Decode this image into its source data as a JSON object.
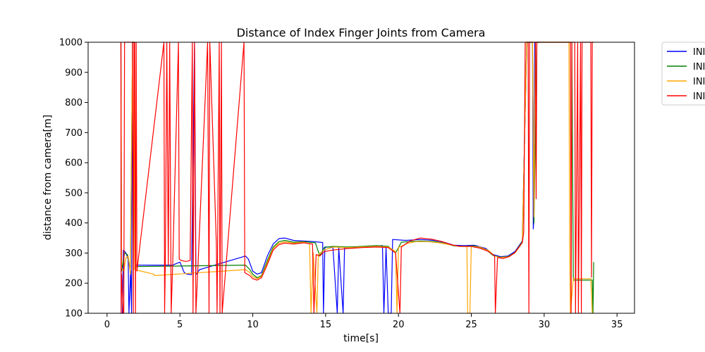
{
  "chart_data": {
    "type": "line",
    "title": "Distance of Index Finger Joints from Camera",
    "xlabel": "time[s]",
    "ylabel": "distance from camera[m]",
    "xlim": [
      -1.3,
      36.2
    ],
    "ylim": [
      100,
      1000
    ],
    "xticks": [
      0,
      5,
      10,
      15,
      20,
      25,
      30,
      35
    ],
    "yticks": [
      100,
      200,
      300,
      400,
      500,
      600,
      700,
      800,
      900,
      1000
    ],
    "grid": false,
    "legend_position": "outside-top-right",
    "series": [
      {
        "name": "INI",
        "color": "#0000ff",
        "points": [
          [
            0.95,
            1000
          ],
          [
            0.97,
            100
          ],
          [
            1.05,
            100
          ],
          [
            1.12,
            310
          ],
          [
            1.3,
            300
          ],
          [
            1.45,
            280
          ],
          [
            1.5,
            100
          ],
          [
            1.62,
            240
          ],
          [
            1.68,
            100
          ],
          [
            1.75,
            1000
          ],
          [
            1.85,
            1000
          ],
          [
            1.9,
            260
          ],
          [
            4.5,
            260
          ],
          [
            5.0,
            270
          ],
          [
            5.3,
            235
          ],
          [
            5.5,
            230
          ],
          [
            5.8,
            228
          ],
          [
            6.0,
            1000
          ],
          [
            6.1,
            228
          ],
          [
            6.35,
            245
          ],
          [
            9.5,
            290
          ],
          [
            9.7,
            280
          ],
          [
            10.0,
            240
          ],
          [
            10.3,
            230
          ],
          [
            10.6,
            235
          ],
          [
            11.0,
            290
          ],
          [
            11.4,
            330
          ],
          [
            11.8,
            348
          ],
          [
            12.2,
            350
          ],
          [
            12.8,
            342
          ],
          [
            13.5,
            340
          ],
          [
            14.2,
            338
          ],
          [
            14.8,
            335
          ],
          [
            14.85,
            100
          ],
          [
            14.95,
            320
          ],
          [
            15.5,
            320
          ],
          [
            15.8,
            100
          ],
          [
            15.9,
            318
          ],
          [
            16.2,
            100
          ],
          [
            16.3,
            318
          ],
          [
            17.0,
            318
          ],
          [
            18.0,
            322
          ],
          [
            18.9,
            325
          ],
          [
            19.0,
            100
          ],
          [
            19.15,
            318
          ],
          [
            19.3,
            100
          ],
          [
            19.5,
            100
          ],
          [
            19.6,
            345
          ],
          [
            20.5,
            342
          ],
          [
            21.5,
            345
          ],
          [
            22.5,
            342
          ],
          [
            23.2,
            335
          ],
          [
            23.8,
            326
          ],
          [
            24.5,
            325
          ],
          [
            25.2,
            326
          ],
          [
            26.0,
            315
          ],
          [
            26.5,
            295
          ],
          [
            27.0,
            288
          ],
          [
            27.5,
            290
          ],
          [
            28.0,
            305
          ],
          [
            28.5,
            340
          ],
          [
            28.8,
            1000
          ],
          [
            29.2,
            1000
          ],
          [
            29.25,
            380
          ],
          [
            29.3,
            420
          ],
          [
            29.35,
            1000
          ],
          [
            29.7,
            1000
          ]
        ]
      },
      {
        "name": "INI",
        "color": "#008000",
        "points": [
          [
            0.95,
            1000
          ],
          [
            1.0,
            240
          ],
          [
            1.2,
            300
          ],
          [
            1.4,
            295
          ],
          [
            1.5,
            270
          ],
          [
            1.6,
            240
          ],
          [
            1.75,
            1000
          ],
          [
            1.85,
            1000
          ],
          [
            1.9,
            255
          ],
          [
            9.5,
            260
          ],
          [
            9.8,
            245
          ],
          [
            10.0,
            230
          ],
          [
            10.3,
            218
          ],
          [
            10.6,
            225
          ],
          [
            11.0,
            275
          ],
          [
            11.4,
            320
          ],
          [
            11.8,
            338
          ],
          [
            12.2,
            342
          ],
          [
            12.8,
            336
          ],
          [
            13.5,
            338
          ],
          [
            14.3,
            334
          ],
          [
            14.6,
            290
          ],
          [
            14.9,
            318
          ],
          [
            15.5,
            322
          ],
          [
            16.5,
            320
          ],
          [
            17.5,
            322
          ],
          [
            18.5,
            325
          ],
          [
            19.3,
            322
          ],
          [
            19.8,
            300
          ],
          [
            20.2,
            336
          ],
          [
            20.8,
            338
          ],
          [
            21.5,
            340
          ],
          [
            22.5,
            338
          ],
          [
            23.2,
            332
          ],
          [
            23.8,
            324
          ],
          [
            24.5,
            322
          ],
          [
            25.2,
            324
          ],
          [
            26.0,
            312
          ],
          [
            26.5,
            292
          ],
          [
            27.0,
            286
          ],
          [
            27.5,
            288
          ],
          [
            28.0,
            302
          ],
          [
            28.5,
            338
          ],
          [
            28.8,
            1000
          ],
          [
            29.2,
            1000
          ],
          [
            29.3,
            400
          ],
          [
            29.5,
            1000
          ],
          [
            29.7,
            1000
          ],
          [
            31.9,
            1000
          ],
          [
            32.0,
            210
          ],
          [
            33.3,
            210
          ],
          [
            33.35,
            100
          ],
          [
            33.4,
            270
          ]
        ]
      },
      {
        "name": "INI",
        "color": "#ffa500",
        "points": [
          [
            0.95,
            1000
          ],
          [
            1.0,
            250
          ],
          [
            1.15,
            240
          ],
          [
            1.3,
            285
          ],
          [
            1.45,
            290
          ],
          [
            1.6,
            230
          ],
          [
            1.75,
            1000
          ],
          [
            1.85,
            1000
          ],
          [
            1.9,
            245
          ],
          [
            3.2,
            230
          ],
          [
            3.25,
            225
          ],
          [
            9.5,
            245
          ],
          [
            9.8,
            235
          ],
          [
            10.0,
            222
          ],
          [
            10.3,
            215
          ],
          [
            10.6,
            222
          ],
          [
            11.0,
            268
          ],
          [
            11.4,
            315
          ],
          [
            11.8,
            333
          ],
          [
            12.2,
            337
          ],
          [
            12.8,
            333
          ],
          [
            13.5,
            336
          ],
          [
            13.9,
            330
          ],
          [
            14.0,
            100
          ],
          [
            14.15,
            300
          ],
          [
            14.4,
            100
          ],
          [
            14.5,
            295
          ],
          [
            14.9,
            310
          ],
          [
            15.5,
            320
          ],
          [
            16.5,
            318
          ],
          [
            17.5,
            320
          ],
          [
            18.5,
            322
          ],
          [
            19.3,
            320
          ],
          [
            19.8,
            305
          ],
          [
            19.9,
            100
          ],
          [
            20.0,
            318
          ],
          [
            20.6,
            332
          ],
          [
            21.2,
            338
          ],
          [
            22.0,
            338
          ],
          [
            22.8,
            334
          ],
          [
            23.5,
            328
          ],
          [
            24.2,
            322
          ],
          [
            24.7,
            322
          ],
          [
            24.75,
            100
          ],
          [
            24.9,
            100
          ],
          [
            25.0,
            322
          ],
          [
            25.6,
            320
          ],
          [
            26.2,
            308
          ],
          [
            26.6,
            290
          ],
          [
            27.0,
            285
          ],
          [
            27.5,
            287
          ],
          [
            28.0,
            300
          ],
          [
            28.5,
            335
          ],
          [
            28.8,
            1000
          ],
          [
            29.2,
            1000
          ],
          [
            29.3,
            420
          ],
          [
            29.4,
            1000
          ],
          [
            29.7,
            1000
          ],
          [
            31.7,
            1000
          ],
          [
            31.75,
            330
          ],
          [
            31.8,
            100
          ],
          [
            32.0,
            215
          ],
          [
            33.2,
            215
          ],
          [
            33.3,
            100
          ]
        ]
      },
      {
        "name": "INI",
        "color": "#ff0000",
        "points": [
          [
            0.95,
            1000
          ],
          [
            0.97,
            100
          ],
          [
            1.0,
            230
          ],
          [
            1.1,
            100
          ],
          [
            1.15,
            100
          ],
          [
            1.2,
            1000
          ],
          [
            1.75,
            1000
          ],
          [
            1.8,
            100
          ],
          [
            1.85,
            1000
          ],
          [
            1.9,
            1000
          ],
          [
            1.95,
            100
          ],
          [
            2.0,
            1000
          ],
          [
            2.05,
            240
          ],
          [
            3.9,
            1000
          ],
          [
            3.95,
            100
          ],
          [
            4.0,
            270
          ],
          [
            4.1,
            1000
          ],
          [
            4.2,
            260
          ],
          [
            4.3,
            1000
          ],
          [
            4.4,
            100
          ],
          [
            4.5,
            260
          ],
          [
            4.9,
            1000
          ],
          [
            4.95,
            280
          ],
          [
            5.1,
            275
          ],
          [
            5.4,
            272
          ],
          [
            5.7,
            275
          ],
          [
            5.85,
            1000
          ],
          [
            5.9,
            100
          ],
          [
            6.0,
            1000
          ],
          [
            6.1,
            100
          ],
          [
            6.9,
            1000
          ],
          [
            7.0,
            100
          ],
          [
            7.05,
            1000
          ],
          [
            7.5,
            330
          ],
          [
            7.55,
            100
          ],
          [
            7.7,
            1000
          ],
          [
            7.75,
            100
          ],
          [
            7.85,
            1000
          ],
          [
            7.9,
            100
          ],
          [
            9.4,
            1000
          ],
          [
            9.45,
            235
          ],
          [
            9.8,
            225
          ],
          [
            10.0,
            215
          ],
          [
            10.3,
            210
          ],
          [
            10.6,
            218
          ],
          [
            11.0,
            262
          ],
          [
            11.4,
            310
          ],
          [
            11.8,
            328
          ],
          [
            12.2,
            333
          ],
          [
            12.8,
            330
          ],
          [
            13.5,
            334
          ],
          [
            14.1,
            330
          ],
          [
            14.2,
            100
          ],
          [
            14.35,
            295
          ],
          [
            14.6,
            290
          ],
          [
            14.9,
            305
          ],
          [
            15.5,
            310
          ],
          [
            16.5,
            315
          ],
          [
            17.5,
            318
          ],
          [
            18.5,
            320
          ],
          [
            19.3,
            318
          ],
          [
            19.8,
            300
          ],
          [
            20.1,
            100
          ],
          [
            20.2,
            320
          ],
          [
            20.8,
            340
          ],
          [
            21.5,
            350
          ],
          [
            22.3,
            346
          ],
          [
            23.0,
            338
          ],
          [
            23.6,
            328
          ],
          [
            24.2,
            322
          ],
          [
            25.0,
            322
          ],
          [
            25.6,
            316
          ],
          [
            26.2,
            305
          ],
          [
            26.6,
            290
          ],
          [
            26.65,
            100
          ],
          [
            26.8,
            285
          ],
          [
            27.2,
            282
          ],
          [
            27.6,
            288
          ],
          [
            28.0,
            302
          ],
          [
            28.5,
            335
          ],
          [
            28.6,
            370
          ],
          [
            28.7,
            1000
          ],
          [
            28.9,
            1000
          ],
          [
            28.95,
            100
          ],
          [
            29.0,
            1000
          ],
          [
            29.4,
            1000
          ],
          [
            29.45,
            480
          ],
          [
            29.5,
            1000
          ],
          [
            29.7,
            1000
          ],
          [
            31.8,
            1000
          ],
          [
            31.85,
            100
          ],
          [
            31.9,
            1000
          ],
          [
            32.1,
            1000
          ],
          [
            32.15,
            100
          ],
          [
            32.3,
            1000
          ],
          [
            32.35,
            100
          ],
          [
            32.5,
            1000
          ],
          [
            32.55,
            100
          ],
          [
            32.6,
            1000
          ],
          [
            33.2,
            1000
          ],
          [
            33.25,
            220
          ],
          [
            33.3,
            1000
          ],
          [
            33.4,
            1000
          ]
        ]
      }
    ]
  }
}
